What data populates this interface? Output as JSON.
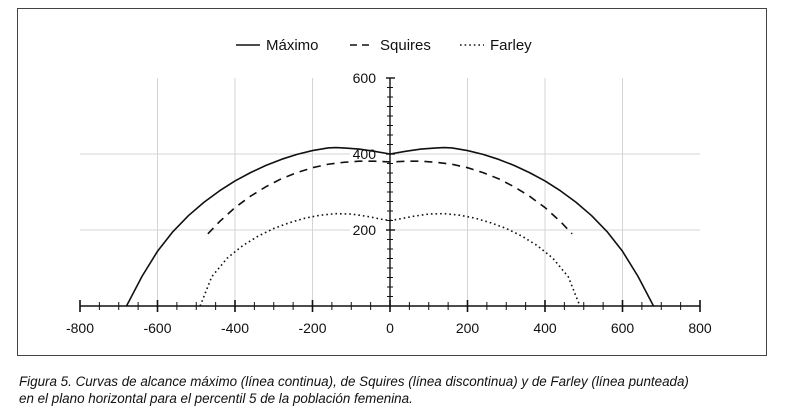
{
  "chart_data": {
    "type": "line",
    "title": "",
    "xlabel": "",
    "ylabel": "",
    "xlim": [
      -800,
      800
    ],
    "ylim": [
      0,
      600
    ],
    "x_ticks": [
      "-800",
      "-600",
      "-400",
      "-200",
      "0",
      "200",
      "400",
      "600",
      "800"
    ],
    "y_ticks": [
      "200",
      "400",
      "600"
    ],
    "grid": "vertical and horizontal gridlines",
    "legend_position": "top",
    "series": [
      {
        "name": "Máximo",
        "style": "solid",
        "x": [
          -680,
          -640,
          -600,
          -560,
          -520,
          -480,
          -440,
          -400,
          -360,
          -320,
          -280,
          -240,
          -200,
          -160,
          -140,
          -120,
          -80,
          -40,
          0,
          40,
          80,
          120,
          140,
          160,
          200,
          240,
          280,
          320,
          360,
          400,
          440,
          480,
          520,
          560,
          600,
          640,
          680
        ],
        "y": [
          0,
          78,
          144,
          196,
          238,
          273,
          303,
          329,
          351,
          370,
          386,
          399,
          409,
          416,
          417,
          416,
          413,
          407,
          400,
          407,
          413,
          416,
          417,
          416,
          409,
          399,
          386,
          370,
          351,
          329,
          303,
          273,
          238,
          196,
          144,
          78,
          0
        ]
      },
      {
        "name": "Squires",
        "style": "dashed",
        "x": [
          -470,
          -440,
          -400,
          -360,
          -320,
          -280,
          -240,
          -200,
          -160,
          -120,
          -80,
          -40,
          0,
          40,
          80,
          120,
          160,
          200,
          240,
          280,
          320,
          360,
          400,
          440,
          470
        ],
        "y": [
          190,
          222,
          259,
          289,
          314,
          335,
          351,
          364,
          373,
          378,
          381,
          381,
          379,
          381,
          381,
          378,
          373,
          364,
          351,
          335,
          314,
          289,
          259,
          222,
          190
        ]
      },
      {
        "name": "Farley",
        "style": "dotted",
        "x": [
          -490,
          -460,
          -420,
          -380,
          -340,
          -300,
          -260,
          -220,
          -180,
          -140,
          -100,
          -60,
          -20,
          0,
          20,
          60,
          100,
          140,
          180,
          220,
          260,
          300,
          340,
          380,
          420,
          460,
          490
        ],
        "y": [
          0,
          77,
          126,
          159,
          184,
          204,
          219,
          231,
          239,
          243,
          242,
          236,
          228,
          225,
          228,
          236,
          242,
          243,
          239,
          231,
          219,
          204,
          184,
          159,
          126,
          77,
          0
        ]
      }
    ]
  },
  "caption": {
    "line1": "Figura 5. Curvas de alcance máximo (línea continua), de Squires (línea discontinua) y de Farley (línea punteada)",
    "line2": "en el plano horizontal para el percentil 5 de la población femenina."
  }
}
